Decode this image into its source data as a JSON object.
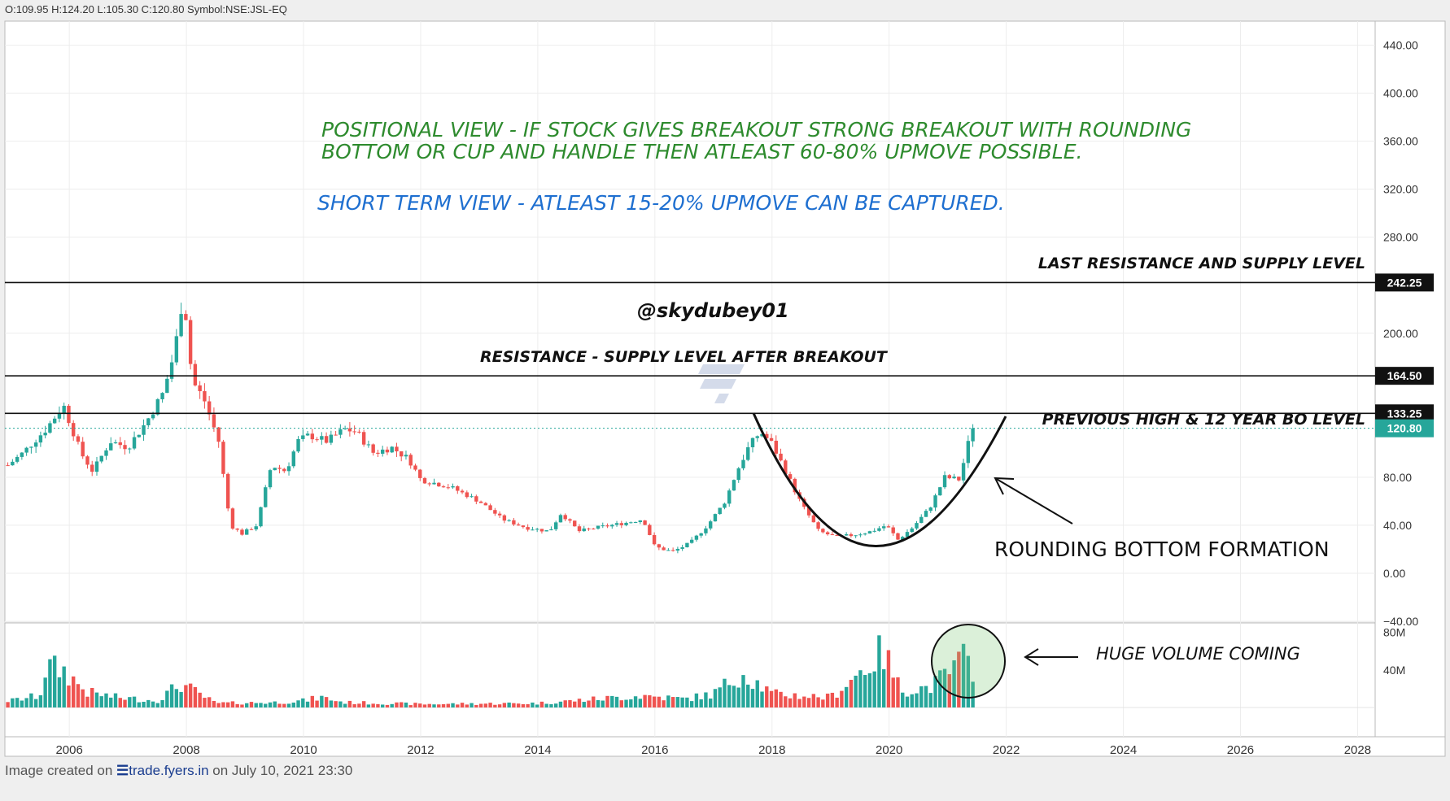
{
  "header": {
    "ohlc": "O:109.95 H:124.20 L:105.30 C:120.80 Symbol:NSE:JSL-EQ"
  },
  "footer": {
    "prefix": "Image created on",
    "brand": "trade.fyers.in",
    "suffix": "on July 10, 2021 23:30"
  },
  "colors": {
    "up": "#26a69a",
    "down": "#ef5350",
    "green_text": "#2e8b2e",
    "blue_text": "#1e6fd0",
    "last_price_bg": "#26a69a"
  },
  "annotations": {
    "positional_line1": "POSITIONAL VIEW - IF STOCK GIVES BREAKOUT STRONG BREAKOUT WITH ROUNDING",
    "positional_line2": "BOTTOM OR CUP AND HANDLE THEN ATLEAST 60-80% UPMOVE POSSIBLE.",
    "short_term": "SHORT TERM VIEW - ATLEAST 15-20% UPMOVE CAN BE CAPTURED.",
    "last_resistance": "LAST RESISTANCE AND SUPPLY LEVEL",
    "handle": "@skydubey01",
    "resistance_supply": "RESISTANCE - SUPPLY LEVEL AFTER BREAKOUT",
    "previous_high": "PREVIOUS HIGH & 12 YEAR BO LEVEL",
    "rounding_bottom": "ROUNDING BOTTOM FORMATION",
    "huge_volume": "HUGE VOLUME  COMING"
  },
  "chart_data": {
    "type": "candlestick",
    "symbol": "NSE:JSL-EQ",
    "last": {
      "open": 109.95,
      "high": 124.2,
      "low": 105.3,
      "close": 120.8
    },
    "price_ticks": [
      "440.00",
      "400.00",
      "360.00",
      "320.00",
      "280.00",
      "200.00",
      "80.00",
      "40.00",
      "0.00",
      "−40.00"
    ],
    "price_tick_values": [
      440,
      400,
      360,
      320,
      280,
      200,
      80,
      40,
      0,
      -40
    ],
    "ylim": [
      -40,
      460
    ],
    "volume_ticks": [
      "80M",
      "40M"
    ],
    "volume_tick_values": [
      80,
      40
    ],
    "volume_ylim": [
      0,
      90
    ],
    "x_ticks": [
      "2006",
      "2008",
      "2010",
      "2012",
      "2014",
      "2016",
      "2018",
      "2020",
      "2022",
      "2024",
      "2026",
      "2028"
    ],
    "x_tick_values": [
      2006,
      2008,
      2010,
      2012,
      2014,
      2016,
      2018,
      2020,
      2022,
      2024,
      2026,
      2028
    ],
    "xlim": [
      2004.9,
      2028.3
    ],
    "levels": [
      {
        "value": 242.25,
        "label": "242.25"
      },
      {
        "value": 164.5,
        "label": "164.50"
      },
      {
        "value": 133.25,
        "label": "133.25"
      }
    ],
    "last_price_label": "120.80",
    "key_points": [
      [
        2004.95,
        90
      ],
      [
        2005.2,
        100
      ],
      [
        2005.6,
        120
      ],
      [
        2005.9,
        140
      ],
      [
        2006.2,
        100
      ],
      [
        2006.4,
        85
      ],
      [
        2006.7,
        110
      ],
      [
        2007.0,
        105
      ],
      [
        2007.3,
        125
      ],
      [
        2007.6,
        150
      ],
      [
        2007.8,
        185
      ],
      [
        2007.95,
        235
      ],
      [
        2008.1,
        160
      ],
      [
        2008.3,
        145
      ],
      [
        2008.55,
        110
      ],
      [
        2008.75,
        40
      ],
      [
        2008.95,
        33
      ],
      [
        2009.2,
        40
      ],
      [
        2009.45,
        90
      ],
      [
        2009.7,
        85
      ],
      [
        2009.9,
        110
      ],
      [
        2010.1,
        115
      ],
      [
        2010.4,
        110
      ],
      [
        2010.7,
        120
      ],
      [
        2010.9,
        118
      ],
      [
        2011.2,
        100
      ],
      [
        2011.5,
        105
      ],
      [
        2011.8,
        95
      ],
      [
        2012.0,
        78
      ],
      [
        2012.5,
        72
      ],
      [
        2013.0,
        60
      ],
      [
        2013.4,
        45
      ],
      [
        2013.8,
        38
      ],
      [
        2014.2,
        35
      ],
      [
        2014.4,
        50
      ],
      [
        2014.7,
        35
      ],
      [
        2015.0,
        38
      ],
      [
        2015.5,
        42
      ],
      [
        2015.8,
        45
      ],
      [
        2016.0,
        22
      ],
      [
        2016.3,
        18
      ],
      [
        2016.6,
        25
      ],
      [
        2016.9,
        40
      ],
      [
        2017.2,
        60
      ],
      [
        2017.4,
        85
      ],
      [
        2017.6,
        105
      ],
      [
        2017.8,
        118
      ],
      [
        2018.0,
        108
      ],
      [
        2018.2,
        88
      ],
      [
        2018.5,
        58
      ],
      [
        2018.8,
        35
      ],
      [
        2019.1,
        30
      ],
      [
        2019.4,
        32
      ],
      [
        2019.7,
        35
      ],
      [
        2019.95,
        40
      ],
      [
        2020.15,
        28
      ],
      [
        2020.4,
        38
      ],
      [
        2020.7,
        55
      ],
      [
        2020.95,
        80
      ],
      [
        2021.2,
        78
      ],
      [
        2021.35,
        108
      ],
      [
        2021.5,
        121
      ]
    ],
    "volume_key_points": [
      [
        2005.0,
        8
      ],
      [
        2005.5,
        14
      ],
      [
        2005.6,
        48
      ],
      [
        2005.9,
        44
      ],
      [
        2006.3,
        18
      ],
      [
        2006.8,
        12
      ],
      [
        2007.5,
        8
      ],
      [
        2007.9,
        28
      ],
      [
        2008.5,
        5
      ],
      [
        2009.5,
        6
      ],
      [
        2010.0,
        8
      ],
      [
        2010.3,
        12
      ],
      [
        2010.7,
        6
      ],
      [
        2012.0,
        4
      ],
      [
        2014.0,
        5
      ],
      [
        2015.0,
        10
      ],
      [
        2015.8,
        14
      ],
      [
        2016.5,
        10
      ],
      [
        2017.0,
        16
      ],
      [
        2017.5,
        42
      ],
      [
        2018.0,
        16
      ],
      [
        2019.0,
        12
      ],
      [
        2019.9,
        66
      ],
      [
        2020.2,
        20
      ],
      [
        2020.7,
        24
      ],
      [
        2021.0,
        40
      ],
      [
        2021.3,
        58
      ],
      [
        2021.5,
        28
      ]
    ]
  }
}
